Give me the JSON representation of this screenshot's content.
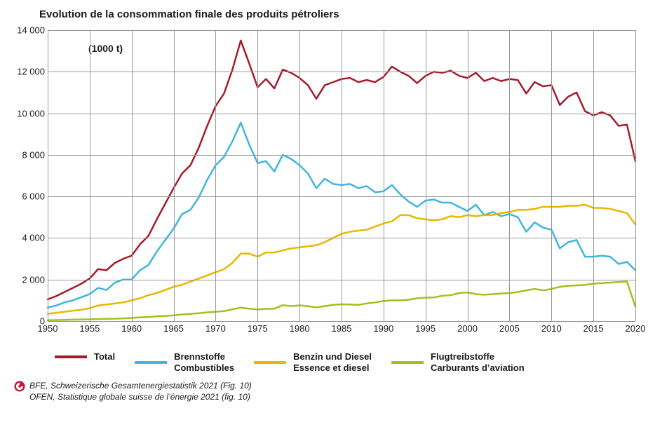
{
  "title": "Evolution de la consommation finale des produits pétroliers",
  "unit_label": "(1000 t)",
  "chart": {
    "type": "line",
    "x_min": 1950,
    "x_max": 2020,
    "x_tick_step": 5,
    "y_min": 0,
    "y_max": 14000,
    "y_tick_step": 2000,
    "grid_color": "#999999",
    "background_color": "#ffffff",
    "line_width": 2.5,
    "x_ticks": [
      1950,
      1955,
      1960,
      1965,
      1970,
      1975,
      1980,
      1985,
      1990,
      1995,
      2000,
      2005,
      2010,
      2015,
      2020
    ],
    "y_ticks": [
      0,
      2000,
      4000,
      6000,
      8000,
      10000,
      12000,
      14000
    ],
    "years": [
      1950,
      1951,
      1952,
      1953,
      1954,
      1955,
      1956,
      1957,
      1958,
      1959,
      1960,
      1961,
      1962,
      1963,
      1964,
      1965,
      1966,
      1967,
      1968,
      1969,
      1970,
      1971,
      1972,
      1973,
      1974,
      1975,
      1976,
      1977,
      1978,
      1979,
      1980,
      1981,
      1982,
      1983,
      1984,
      1985,
      1986,
      1987,
      1988,
      1989,
      1990,
      1991,
      1992,
      1993,
      1994,
      1995,
      1996,
      1997,
      1998,
      1999,
      2000,
      2001,
      2002,
      2003,
      2004,
      2005,
      2006,
      2007,
      2008,
      2009,
      2010,
      2011,
      2012,
      2013,
      2014,
      2015,
      2016,
      2017,
      2018,
      2019,
      2020
    ],
    "series": [
      {
        "key": "total",
        "label_line1": "Total",
        "label_line2": "",
        "color": "#a61b2b",
        "values": [
          1050,
          1200,
          1400,
          1600,
          1800,
          2050,
          2500,
          2450,
          2800,
          3000,
          3150,
          3700,
          4100,
          4900,
          5650,
          6400,
          7100,
          7500,
          8350,
          9400,
          10350,
          10950,
          12100,
          13500,
          12400,
          11250,
          11650,
          11200,
          12100,
          11950,
          11700,
          11350,
          10700,
          11350,
          11500,
          11650,
          11700,
          11500,
          11600,
          11500,
          11750,
          12250,
          12000,
          11800,
          11450,
          11800,
          12000,
          11950,
          12050,
          11800,
          11700,
          11950,
          11550,
          11700,
          11550,
          11650,
          11600,
          10950,
          11500,
          11300,
          11350,
          10400,
          10800,
          11000,
          10100,
          9900,
          10050,
          9900,
          9400,
          9450,
          7700
        ]
      },
      {
        "key": "combustibles",
        "label_line1": "Brennstoffe",
        "label_line2": "Combustibles",
        "color": "#3fb6dc",
        "values": [
          650,
          750,
          900,
          1000,
          1150,
          1300,
          1600,
          1500,
          1850,
          2000,
          2000,
          2450,
          2700,
          3350,
          3900,
          4450,
          5150,
          5350,
          5950,
          6800,
          7500,
          7900,
          8650,
          9550,
          8500,
          7600,
          7700,
          7200,
          8000,
          7800,
          7500,
          7100,
          6400,
          6850,
          6600,
          6550,
          6600,
          6400,
          6500,
          6200,
          6250,
          6550,
          6100,
          5750,
          5500,
          5800,
          5850,
          5700,
          5700,
          5500,
          5300,
          5600,
          5100,
          5250,
          5050,
          5150,
          5000,
          4300,
          4750,
          4500,
          4400,
          3500,
          3800,
          3900,
          3100,
          3100,
          3150,
          3100,
          2750,
          2850,
          2450
        ]
      },
      {
        "key": "essence_diesel",
        "label_line1": "Benzin und Diesel",
        "label_line2": "Essence et diesel",
        "color": "#e6b800",
        "values": [
          350,
          400,
          450,
          500,
          550,
          620,
          750,
          800,
          850,
          900,
          1000,
          1100,
          1250,
          1350,
          1500,
          1650,
          1750,
          1900,
          2050,
          2200,
          2350,
          2500,
          2800,
          3250,
          3250,
          3100,
          3300,
          3300,
          3400,
          3500,
          3550,
          3600,
          3650,
          3800,
          4000,
          4200,
          4300,
          4350,
          4400,
          4550,
          4700,
          4800,
          5100,
          5100,
          4950,
          4900,
          4850,
          4900,
          5050,
          5000,
          5100,
          5050,
          5100,
          5100,
          5200,
          5250,
          5350,
          5350,
          5400,
          5500,
          5500,
          5500,
          5550,
          5550,
          5600,
          5450,
          5450,
          5400,
          5300,
          5200,
          4650
        ]
      },
      {
        "key": "aviation",
        "label_line1": "Flugtreibstoffe",
        "label_line2": "Carburants d’aviation",
        "color": "#a2c11c",
        "values": [
          40,
          50,
          60,
          70,
          80,
          90,
          100,
          110,
          120,
          130,
          150,
          180,
          200,
          230,
          250,
          280,
          320,
          350,
          380,
          420,
          450,
          480,
          570,
          650,
          600,
          560,
          590,
          600,
          770,
          720,
          760,
          720,
          660,
          720,
          780,
          810,
          800,
          780,
          850,
          900,
          970,
          1000,
          1000,
          1030,
          1100,
          1130,
          1140,
          1220,
          1250,
          1350,
          1380,
          1300,
          1270,
          1300,
          1330,
          1350,
          1400,
          1480,
          1550,
          1480,
          1550,
          1650,
          1700,
          1720,
          1740,
          1800,
          1830,
          1850,
          1880,
          1900,
          700
        ]
      }
    ]
  },
  "legend": {
    "swatch_width": 46,
    "swatch_border": 4,
    "font_size": 13
  },
  "source": {
    "icon_color": "#c8102e",
    "line1": "BFE, Schweizerische Gesamtenergiestatistik 2021 (Fig. 10)",
    "line2": "OFEN, Statistique globale suisse de l’énergie 2021 (fig. 10)"
  }
}
